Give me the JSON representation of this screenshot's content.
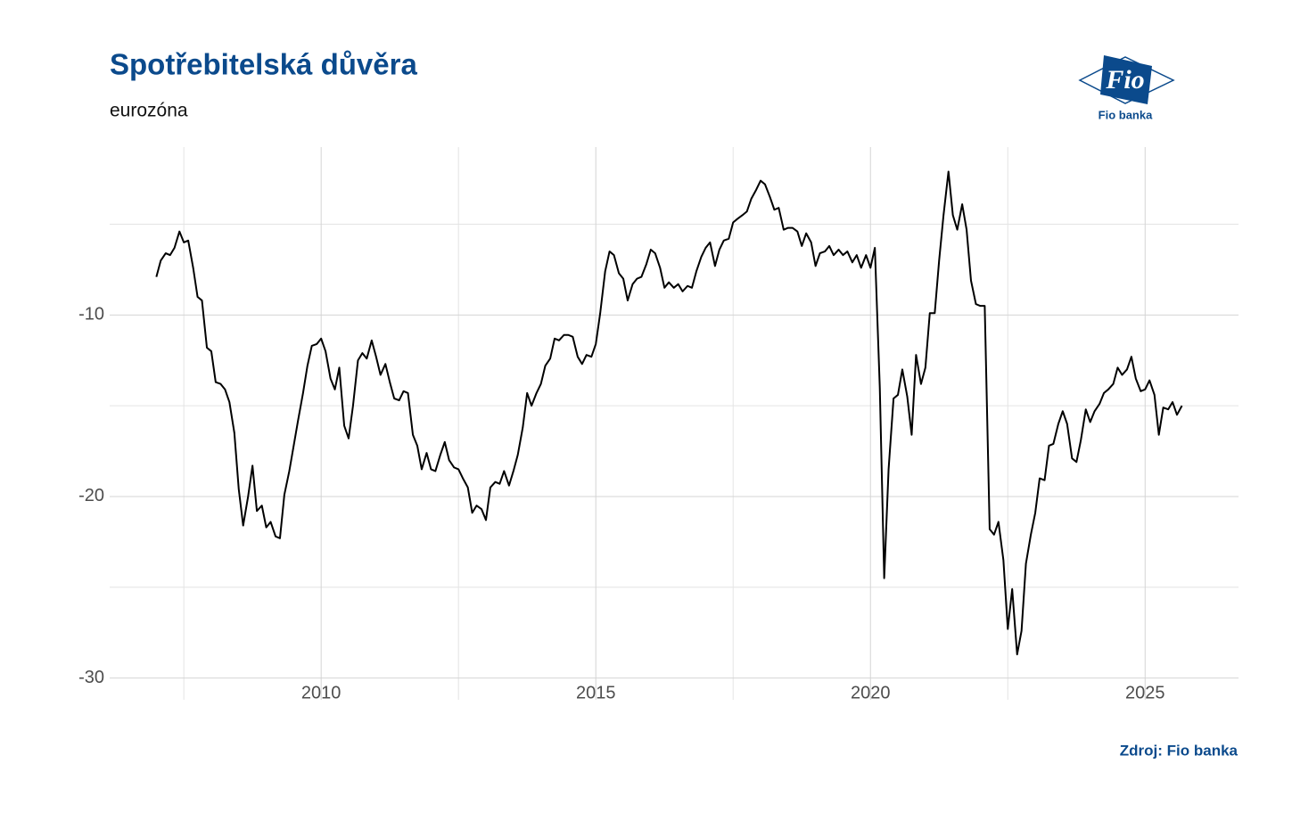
{
  "chart_data": {
    "type": "line",
    "title": "Spotřebitelská důvěra",
    "subtitle": "eurozóna",
    "source": "Zdroj: Fio banka",
    "color": "#000000",
    "grid": true,
    "xlim": [
      2006.15,
      2026.7
    ],
    "xticks": [
      2010,
      2015,
      2020,
      2025
    ],
    "minor_xticks": [
      2007.5,
      2012.5,
      2017.5,
      2022.5
    ],
    "ylim": [
      -31.2,
      -0.75
    ],
    "yticks": [
      -30,
      -20,
      -10
    ],
    "minor_yticks": [
      -25,
      -15,
      -5
    ],
    "x": [
      2007,
      2007.08,
      2007.17,
      2007.25,
      2007.33,
      2007.42,
      2007.5,
      2007.58,
      2007.67,
      2007.75,
      2007.83,
      2007.92,
      2008,
      2008.08,
      2008.17,
      2008.25,
      2008.33,
      2008.42,
      2008.5,
      2008.58,
      2008.67,
      2008.75,
      2008.83,
      2008.92,
      2009,
      2009.08,
      2009.17,
      2009.25,
      2009.33,
      2009.42,
      2009.5,
      2009.58,
      2009.67,
      2009.75,
      2009.83,
      2009.92,
      2010,
      2010.08,
      2010.17,
      2010.25,
      2010.33,
      2010.42,
      2010.5,
      2010.58,
      2010.67,
      2010.75,
      2010.83,
      2010.92,
      2011,
      2011.08,
      2011.17,
      2011.25,
      2011.33,
      2011.42,
      2011.5,
      2011.58,
      2011.67,
      2011.75,
      2011.83,
      2011.92,
      2012,
      2012.08,
      2012.17,
      2012.25,
      2012.33,
      2012.42,
      2012.5,
      2012.58,
      2012.67,
      2012.75,
      2012.83,
      2012.92,
      2013,
      2013.08,
      2013.17,
      2013.25,
      2013.33,
      2013.42,
      2013.5,
      2013.58,
      2013.67,
      2013.75,
      2013.83,
      2013.92,
      2014,
      2014.08,
      2014.17,
      2014.25,
      2014.33,
      2014.42,
      2014.5,
      2014.58,
      2014.67,
      2014.75,
      2014.83,
      2014.92,
      2015,
      2015.08,
      2015.17,
      2015.25,
      2015.33,
      2015.42,
      2015.5,
      2015.58,
      2015.67,
      2015.75,
      2015.83,
      2015.92,
      2016,
      2016.08,
      2016.17,
      2016.25,
      2016.33,
      2016.42,
      2016.5,
      2016.58,
      2016.67,
      2016.75,
      2016.83,
      2016.92,
      2017,
      2017.08,
      2017.17,
      2017.25,
      2017.33,
      2017.42,
      2017.5,
      2017.58,
      2017.67,
      2017.75,
      2017.83,
      2017.92,
      2018,
      2018.08,
      2018.17,
      2018.25,
      2018.33,
      2018.42,
      2018.5,
      2018.58,
      2018.67,
      2018.75,
      2018.83,
      2018.92,
      2019,
      2019.08,
      2019.17,
      2019.25,
      2019.33,
      2019.42,
      2019.5,
      2019.58,
      2019.67,
      2019.75,
      2019.83,
      2019.92,
      2020,
      2020.08,
      2020.17,
      2020.25,
      2020.33,
      2020.42,
      2020.5,
      2020.58,
      2020.67,
      2020.75,
      2020.83,
      2020.92,
      2021,
      2021.08,
      2021.17,
      2021.25,
      2021.33,
      2021.42,
      2021.5,
      2021.58,
      2021.67,
      2021.75,
      2021.83,
      2021.92,
      2022,
      2022.08,
      2022.17,
      2022.25,
      2022.33,
      2022.42,
      2022.5,
      2022.58,
      2022.67,
      2022.75,
      2022.83,
      2022.92,
      2023,
      2023.08,
      2023.17,
      2023.25,
      2023.33,
      2023.42,
      2023.5,
      2023.58,
      2023.67,
      2023.75,
      2023.83,
      2023.92,
      2024,
      2024.08,
      2024.17,
      2024.25,
      2024.33,
      2024.42,
      2024.5,
      2024.58,
      2024.67,
      2024.75,
      2024.83,
      2024.92,
      2025,
      2025.08,
      2025.17,
      2025.25,
      2025.33,
      2025.42,
      2025.5,
      2025.58,
      2025.67
    ],
    "values": [
      -7.9,
      -7.0,
      -6.6,
      -6.7,
      -6.3,
      -5.4,
      -6.0,
      -5.9,
      -7.4,
      -9.0,
      -9.2,
      -11.8,
      -12.0,
      -13.7,
      -13.8,
      -14.1,
      -14.8,
      -16.5,
      -19.6,
      -21.6,
      -20.0,
      -18.3,
      -20.8,
      -20.5,
      -21.7,
      -21.4,
      -22.2,
      -22.3,
      -19.9,
      -18.6,
      -17.2,
      -15.8,
      -14.3,
      -12.8,
      -11.7,
      -11.6,
      -11.3,
      -12.0,
      -13.5,
      -14.1,
      -12.9,
      -16.1,
      -16.8,
      -15.0,
      -12.5,
      -12.1,
      -12.4,
      -11.4,
      -12.3,
      -13.3,
      -12.7,
      -13.7,
      -14.6,
      -14.7,
      -14.2,
      -14.3,
      -16.6,
      -17.2,
      -18.5,
      -17.6,
      -18.5,
      -18.6,
      -17.7,
      -17.0,
      -18.0,
      -18.4,
      -18.5,
      -19.0,
      -19.5,
      -20.9,
      -20.5,
      -20.7,
      -21.3,
      -19.5,
      -19.2,
      -19.3,
      -18.6,
      -19.4,
      -18.6,
      -17.7,
      -16.2,
      -14.3,
      -15.0,
      -14.3,
      -13.8,
      -12.8,
      -12.4,
      -11.3,
      -11.4,
      -11.1,
      -11.1,
      -11.2,
      -12.3,
      -12.7,
      -12.2,
      -12.3,
      -11.6,
      -9.9,
      -7.6,
      -6.5,
      -6.7,
      -7.7,
      -8.0,
      -9.2,
      -8.3,
      -8.0,
      -7.9,
      -7.2,
      -6.4,
      -6.6,
      -7.4,
      -8.5,
      -8.2,
      -8.5,
      -8.3,
      -8.7,
      -8.4,
      -8.5,
      -7.6,
      -6.8,
      -6.3,
      -6.0,
      -7.3,
      -6.4,
      -5.9,
      -5.8,
      -4.9,
      -4.7,
      -4.5,
      -4.3,
      -3.6,
      -3.1,
      -2.6,
      -2.8,
      -3.5,
      -4.2,
      -4.1,
      -5.3,
      -5.2,
      -5.2,
      -5.4,
      -6.2,
      -5.5,
      -6.0,
      -7.3,
      -6.6,
      -6.5,
      -6.2,
      -6.7,
      -6.4,
      -6.7,
      -6.5,
      -7.1,
      -6.7,
      -7.4,
      -6.7,
      -7.4,
      -6.3,
      -14.0,
      -24.5,
      -18.5,
      -14.6,
      -14.4,
      -13.0,
      -14.5,
      -16.6,
      -12.2,
      -13.8,
      -12.9,
      -9.9,
      -9.9,
      -7.0,
      -4.5,
      -2.1,
      -4.5,
      -5.3,
      -3.9,
      -5.3,
      -8.1,
      -9.4,
      -9.5,
      -9.5,
      -21.8,
      -22.1,
      -21.4,
      -23.5,
      -27.3,
      -25.1,
      -28.7,
      -27.4,
      -23.7,
      -22.1,
      -20.9,
      -19.0,
      -19.1,
      -17.2,
      -17.1,
      -16.0,
      -15.3,
      -16.0,
      -17.9,
      -18.1,
      -16.9,
      -15.2,
      -15.9,
      -15.3,
      -14.9,
      -14.3,
      -14.1,
      -13.8,
      -12.9,
      -13.3,
      -13.0,
      -12.3,
      -13.5,
      -14.2,
      -14.1,
      -13.6,
      -14.4,
      -16.6,
      -15.1,
      -15.2,
      -14.8,
      -15.5,
      -15.0
    ]
  },
  "logo": {
    "mark": "Fio",
    "caption": "Fio banka"
  }
}
